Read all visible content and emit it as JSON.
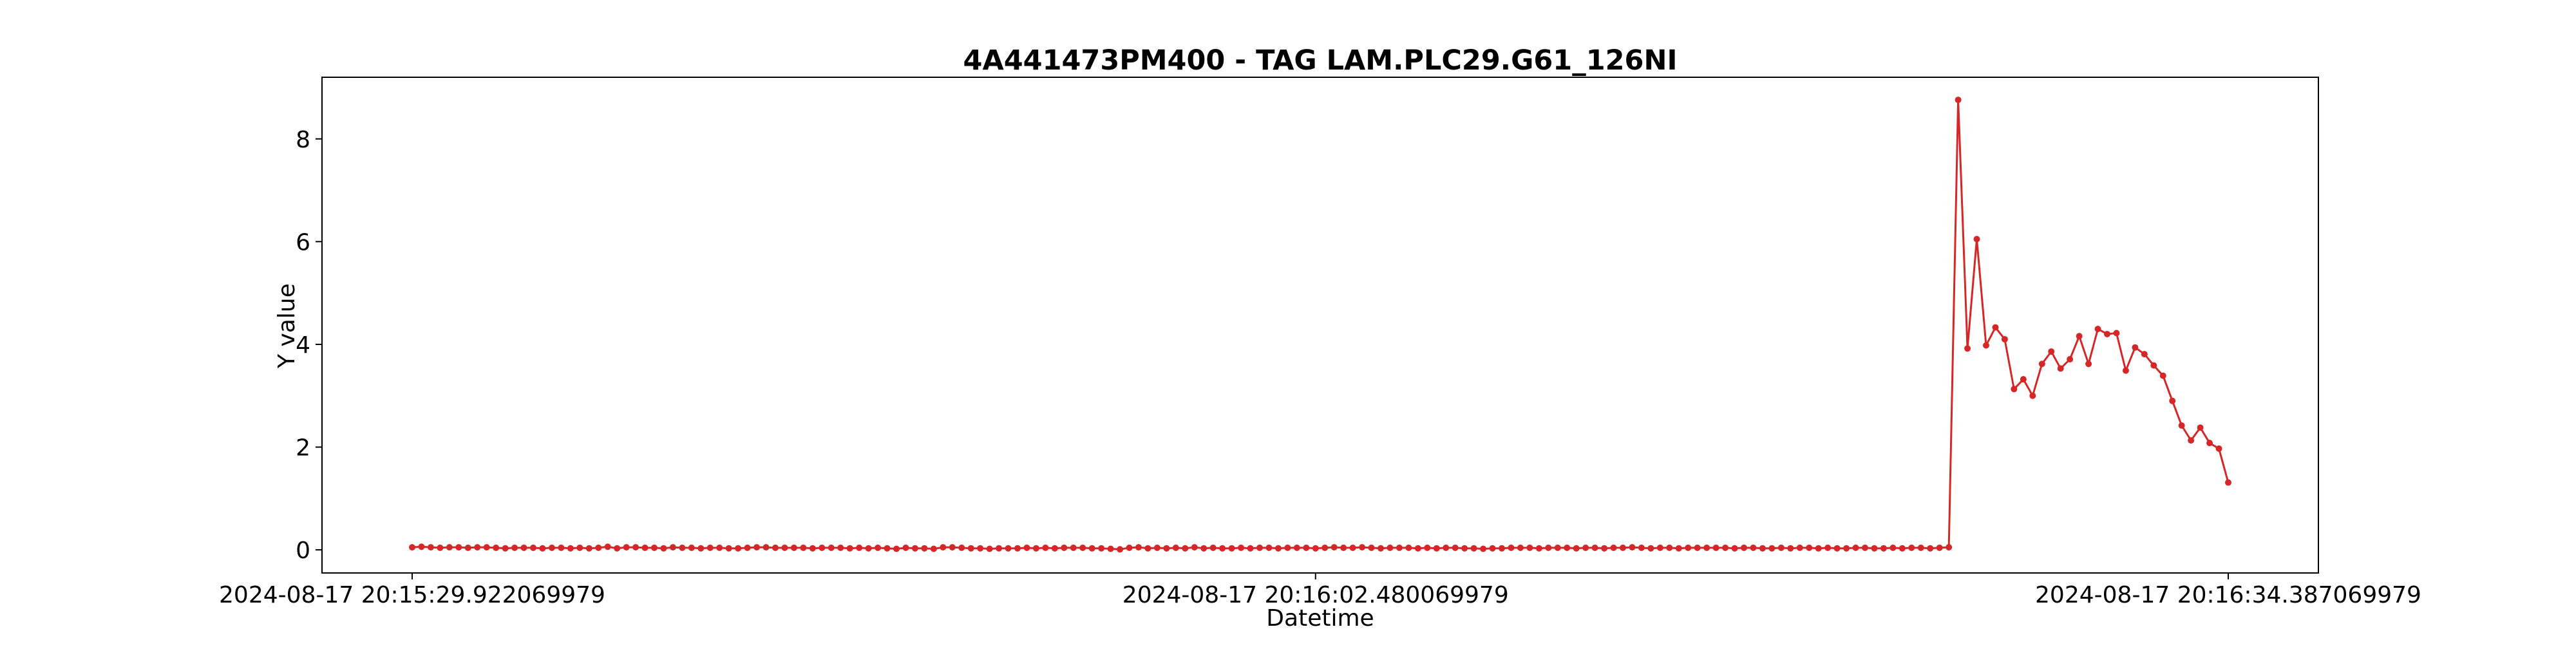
{
  "chart_data": {
    "type": "line",
    "title": "4A441473PM400 - TAG LAM.PLC29.G61_126NI",
    "xlabel": "Datetime",
    "ylabel": "Y value",
    "ylim": [
      -0.45,
      9.2
    ],
    "yticks": [
      0,
      2,
      4,
      6,
      8
    ],
    "xtick_labels": [
      "2024-08-17 20:15:29.922069979",
      "2024-08-17 20:16:02.480069979",
      "2024-08-17 20:16:34.387069979"
    ],
    "grid": false,
    "line_color": "#d62728",
    "series": [
      {
        "values": [
          0.05,
          0.06,
          0.05,
          0.04,
          0.05,
          0.05,
          0.04,
          0.05,
          0.05,
          0.04,
          0.03,
          0.04,
          0.04,
          0.04,
          0.03,
          0.04,
          0.04,
          0.03,
          0.04,
          0.03,
          0.04,
          0.06,
          0.03,
          0.05,
          0.05,
          0.04,
          0.04,
          0.03,
          0.05,
          0.04,
          0.04,
          0.03,
          0.04,
          0.04,
          0.03,
          0.03,
          0.04,
          0.05,
          0.05,
          0.04,
          0.04,
          0.04,
          0.04,
          0.03,
          0.04,
          0.04,
          0.04,
          0.03,
          0.04,
          0.03,
          0.04,
          0.03,
          0.02,
          0.04,
          0.03,
          0.03,
          0.02,
          0.05,
          0.05,
          0.04,
          0.03,
          0.03,
          0.02,
          0.03,
          0.03,
          0.03,
          0.04,
          0.03,
          0.04,
          0.03,
          0.04,
          0.04,
          0.04,
          0.03,
          0.03,
          0.02,
          0.01,
          0.04,
          0.05,
          0.03,
          0.04,
          0.03,
          0.04,
          0.03,
          0.05,
          0.03,
          0.04,
          0.03,
          0.03,
          0.04,
          0.03,
          0.04,
          0.04,
          0.03,
          0.04,
          0.04,
          0.04,
          0.03,
          0.04,
          0.05,
          0.04,
          0.04,
          0.05,
          0.04,
          0.03,
          0.04,
          0.04,
          0.04,
          0.03,
          0.04,
          0.03,
          0.04,
          0.04,
          0.03,
          0.03,
          0.02,
          0.03,
          0.03,
          0.04,
          0.04,
          0.04,
          0.03,
          0.04,
          0.04,
          0.04,
          0.03,
          0.04,
          0.04,
          0.03,
          0.04,
          0.04,
          0.05,
          0.04,
          0.03,
          0.04,
          0.04,
          0.03,
          0.04,
          0.04,
          0.04,
          0.04,
          0.04,
          0.03,
          0.04,
          0.04,
          0.03,
          0.03,
          0.04,
          0.03,
          0.04,
          0.04,
          0.03,
          0.04,
          0.03,
          0.03,
          0.04,
          0.04,
          0.03,
          0.03,
          0.04,
          0.03,
          0.04,
          0.04,
          0.03,
          0.04,
          0.05,
          8.76,
          3.92,
          6.05,
          3.98,
          4.33,
          4.1,
          3.13,
          3.32,
          3.0,
          3.62,
          3.86,
          3.53,
          3.71,
          4.16,
          3.62,
          4.3,
          4.2,
          4.22,
          3.49,
          3.94,
          3.81,
          3.59,
          3.39,
          2.9,
          2.42,
          2.13,
          2.38,
          2.08,
          1.97,
          1.31
        ]
      }
    ]
  }
}
